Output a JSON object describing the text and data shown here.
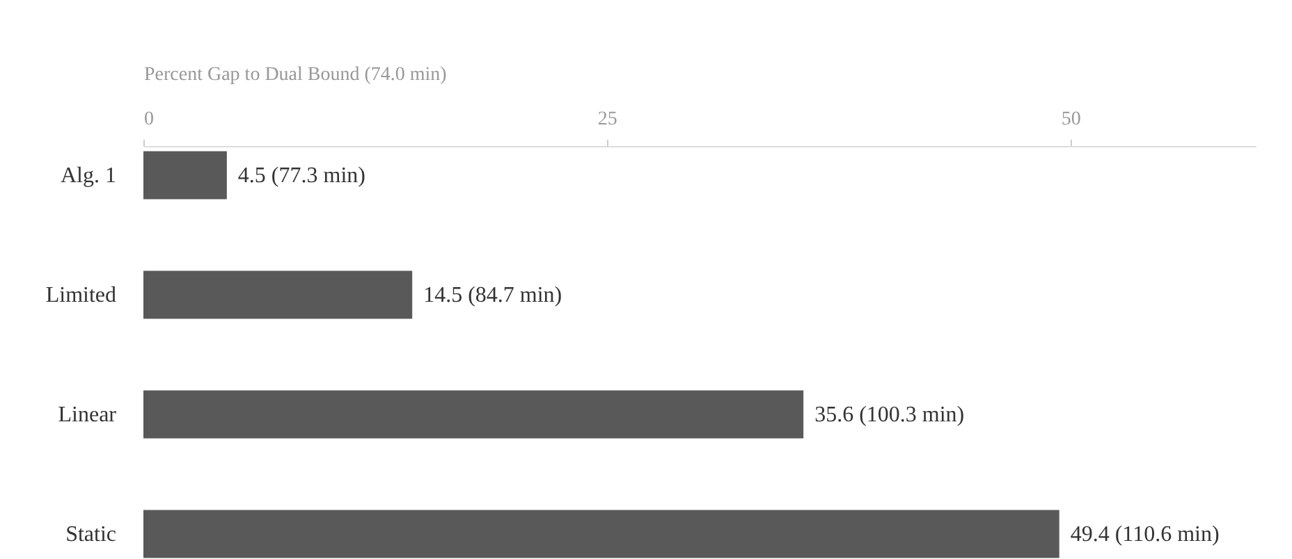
{
  "chart_data": {
    "type": "bar",
    "orientation": "horizontal",
    "xlabel": "Percent Gap to Dual Bound (74.0 min)",
    "categories": [
      "Alg. 1",
      "Limited",
      "Linear",
      "Static"
    ],
    "values": [
      4.5,
      14.5,
      35.6,
      49.4
    ],
    "value_labels": [
      "4.5 (77.3 min)",
      "14.5 (84.7 min)",
      "35.6 (100.3 min)",
      "49.4 (110.6 min)"
    ],
    "color": "#595959",
    "xlim": [
      0,
      60
    ],
    "xticks": [
      0,
      25,
      50
    ],
    "grid": false
  }
}
